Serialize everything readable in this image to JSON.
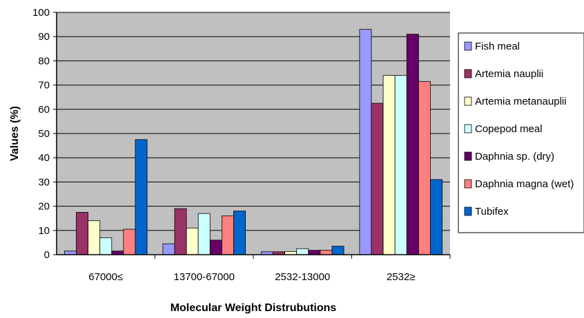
{
  "chart_data": {
    "type": "bar",
    "title": "",
    "xlabel": "Molecular Weight Distrubutions",
    "ylabel": "Values (%)",
    "ylim": [
      0,
      100
    ],
    "yticks": [
      0,
      10,
      20,
      30,
      40,
      50,
      60,
      70,
      80,
      90,
      100
    ],
    "categories": [
      "67000≤",
      "13700-67000",
      "2532-13000",
      "2532≥"
    ],
    "grid": true,
    "plot_background": "#C0C0C0",
    "legend_position": "right",
    "series": [
      {
        "name": "Fish meal",
        "color": "#9999FF",
        "values": [
          1.5,
          4.5,
          1.2,
          93
        ]
      },
      {
        "name": "Artemia nauplii",
        "color": "#993366",
        "values": [
          17.5,
          19,
          1.2,
          62.5
        ]
      },
      {
        "name": "Artemia metanauplii",
        "color": "#FFFFCC",
        "values": [
          14,
          11,
          1.3,
          74
        ]
      },
      {
        "name": "Copepod meal",
        "color": "#CCFFFF",
        "values": [
          7,
          17,
          2.5,
          74
        ]
      },
      {
        "name": "Daphnia sp. (dry)",
        "color": "#660066",
        "values": [
          1.5,
          6,
          1.8,
          91
        ]
      },
      {
        "name": "Daphnia magna (wet)",
        "color": "#FF8080",
        "values": [
          10.5,
          16,
          1.8,
          71.5
        ]
      },
      {
        "name": "Tubifex",
        "color": "#0066CC",
        "values": [
          47.5,
          18,
          3.5,
          31
        ]
      }
    ]
  }
}
